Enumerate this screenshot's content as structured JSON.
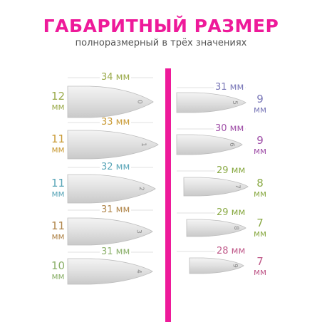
{
  "header": {
    "title": "ГАБАРИТНЫЙ РАЗМЕР",
    "subtitle": "полноразмерный в трёх значениях"
  },
  "colors": {
    "accent": "#ee1a9a"
  },
  "left_nails": [
    {
      "size": "0",
      "length": "34 мм",
      "width_value": "12",
      "width_unit": "мм",
      "color": "#9aaa4a"
    },
    {
      "size": "1",
      "length": "33 мм",
      "width_value": "11",
      "width_unit": "мм",
      "color": "#c99a35"
    },
    {
      "size": "2",
      "length": "32 мм",
      "width_value": "11",
      "width_unit": "мм",
      "color": "#5aa6b8"
    },
    {
      "size": "3",
      "length": "31 мм",
      "width_value": "11",
      "width_unit": "мм",
      "color": "#b0854a"
    },
    {
      "size": "4",
      "length": "31 мм",
      "width_value": "10",
      "width_unit": "мм",
      "color": "#8bb06a"
    }
  ],
  "right_nails": [
    {
      "size": "5",
      "length": "31 мм",
      "width_value": "9",
      "width_unit": "мм",
      "color": "#7a78b8"
    },
    {
      "size": "6",
      "length": "30 мм",
      "width_value": "9",
      "width_unit": "мм",
      "color": "#a050a8"
    },
    {
      "size": "7",
      "length": "29 мм",
      "width_value": "8",
      "width_unit": "мм",
      "color": "#8aaa45"
    },
    {
      "size": "8",
      "length": "29 мм",
      "width_value": "7",
      "width_unit": "мм",
      "color": "#8aaa45"
    },
    {
      "size": "9",
      "length": "28 мм",
      "width_value": "7",
      "width_unit": "мм",
      "color": "#c05a8a"
    }
  ]
}
